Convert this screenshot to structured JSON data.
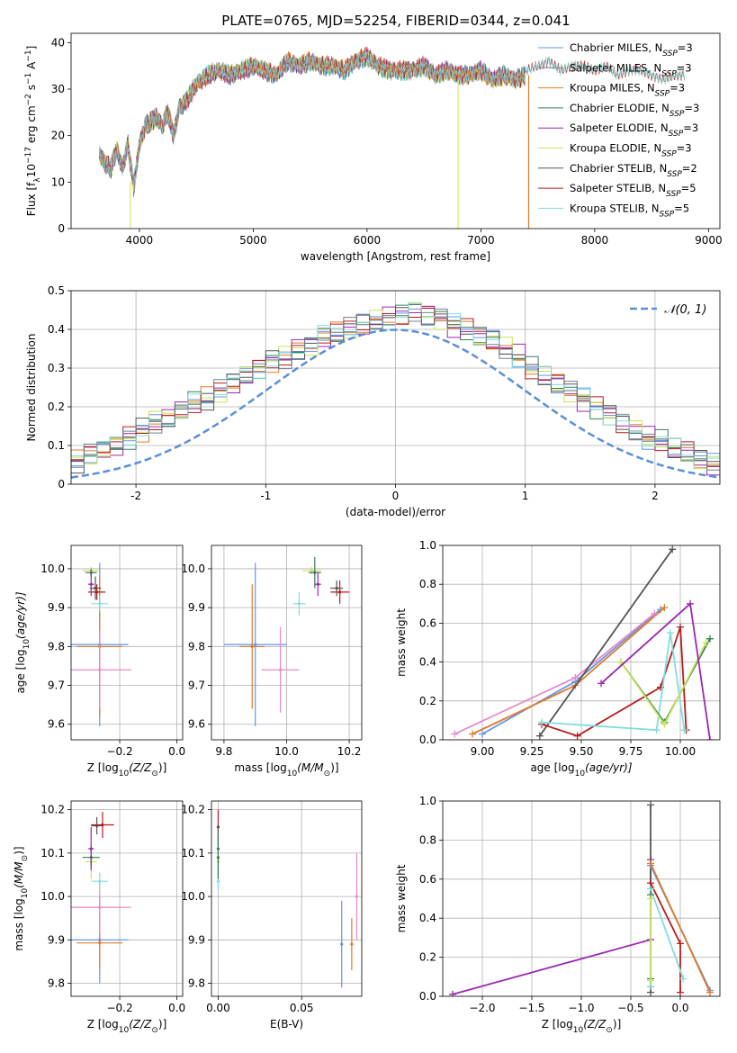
{
  "title": "PLATE=0765, MJD=52254, FIBERID=0344, z=0.041",
  "colors": [
    "#6495ed",
    "#708090",
    "#e07b27",
    "#3a7d5c",
    "#9c27b0",
    "#c8e55a",
    "#555555",
    "#b71c1c",
    "#80dede",
    "#e889c6"
  ],
  "legend_entries": [
    {
      "pre": "Chabrier MILES, N",
      "sub": "SSP",
      "post": "=3"
    },
    {
      "pre": "Salpeter MILES, N",
      "sub": "SSP",
      "post": "=3"
    },
    {
      "pre": "Kroupa MILES, N",
      "sub": "SSP",
      "post": "=3"
    },
    {
      "pre": "Chabrier ELODIE, N",
      "sub": "SSP",
      "post": "=3"
    },
    {
      "pre": "Salpeter ELODIE, N",
      "sub": "SSP",
      "post": "=3"
    },
    {
      "pre": "Kroupa ELODIE, N",
      "sub": "SSP",
      "post": "=3"
    },
    {
      "pre": "Chabrier STELIB, N",
      "sub": "SSP",
      "post": "=2"
    },
    {
      "pre": "Salpeter STELIB, N",
      "sub": "SSP",
      "post": "=5"
    },
    {
      "pre": "Kroupa STELIB, N",
      "sub": "SSP",
      "post": "=5"
    }
  ],
  "chart_data": [
    {
      "type": "line",
      "xlabel": "wavelength [Angstrom, rest frame]",
      "ylabel_parts": {
        "a": "Flux [f",
        "b": "λ",
        "c": "10",
        "d": "−17",
        "e": " erg cm",
        "f": "−2",
        "g": " s",
        "h": "−1",
        "i": " A",
        "j": "−1",
        "k": "]"
      },
      "xlim": [
        3400,
        9100
      ],
      "ylim": [
        0,
        42
      ],
      "xticks": [
        4000,
        5000,
        6000,
        7000,
        8000,
        9000
      ],
      "yticks": [
        0,
        10,
        20,
        30,
        40
      ],
      "spectrum": {
        "x": [
          3650,
          3700,
          3750,
          3800,
          3850,
          3900,
          3950,
          4000,
          4050,
          4100,
          4150,
          4200,
          4250,
          4300,
          4350,
          4400,
          4500,
          4600,
          4700,
          4800,
          4900,
          5000,
          5100,
          5200,
          5300,
          5400,
          5500,
          5600,
          5700,
          5800,
          5900,
          6000,
          6100,
          6200,
          6300,
          6400,
          6500,
          6600,
          6700,
          6800,
          6900,
          7000,
          7100,
          7200,
          7300,
          7400
        ],
        "y": [
          16,
          14,
          13,
          17,
          13,
          18,
          9,
          18,
          22,
          23,
          24,
          22,
          25,
          20,
          26,
          27,
          31,
          33,
          34,
          33,
          34,
          35,
          34,
          33,
          36,
          35,
          36,
          35,
          35,
          34,
          36,
          37,
          35,
          34,
          34,
          34,
          35,
          33,
          34,
          33,
          33,
          34,
          32,
          33,
          32,
          33
        ]
      },
      "red_tail": {
        "x": [
          7400,
          7500,
          7600,
          7700,
          7800,
          7900,
          8000,
          8100,
          8200,
          8300,
          8400,
          8500,
          8600,
          8700,
          8800
        ],
        "y": [
          34,
          35,
          36,
          34,
          35,
          35,
          34,
          35,
          33,
          34,
          34,
          33,
          32,
          33,
          33
        ]
      },
      "drops": [
        3920,
        6800,
        7420
      ],
      "legend_position": "top-right",
      "grid": false
    },
    {
      "type": "histogram",
      "xlabel": "(data-model)/error",
      "ylabel": "Normed distribution",
      "xlim": [
        -2.5,
        2.5
      ],
      "ylim": [
        0,
        0.5
      ],
      "xticks": [
        -2,
        -1,
        0,
        1,
        2
      ],
      "yticks": [
        0.0,
        0.1,
        0.2,
        0.3,
        0.4,
        0.5
      ],
      "bin_width": 0.1,
      "hist_base": [
        0.02,
        0.03,
        0.03,
        0.04,
        0.05,
        0.06,
        0.08,
        0.09,
        0.1,
        0.12,
        0.14,
        0.16,
        0.17,
        0.19,
        0.21,
        0.22,
        0.24,
        0.26,
        0.28,
        0.3,
        0.32,
        0.33,
        0.35,
        0.36,
        0.38,
        0.39,
        0.4,
        0.41,
        0.42,
        0.43,
        0.44,
        0.45,
        0.44,
        0.43,
        0.41,
        0.4,
        0.38,
        0.37,
        0.35,
        0.33,
        0.3,
        0.28,
        0.26,
        0.24,
        0.22,
        0.2,
        0.18,
        0.16,
        0.14,
        0.12,
        0.11,
        0.09,
        0.08,
        0.06,
        0.05,
        0.04,
        0.03,
        0.03,
        0.02,
        0.02
      ],
      "grid": true,
      "legend_label": "𝒩(0, 1)",
      "legend_position": "top-right"
    },
    {
      "type": "scatter",
      "xlabel_parts": {
        "a": "Z [log",
        "b": "10",
        "c": "(Z/Z",
        "d": "⊙",
        "e": ")]"
      },
      "ylabel_parts": {
        "a": "age  [log",
        "b": "10",
        "c": "(age/yr)]"
      },
      "xlim": [
        -0.37,
        0.02
      ],
      "ylim": [
        9.56,
        10.06
      ],
      "xticks": [
        -0.2,
        0.0
      ],
      "xticklabels": [
        "−0.2",
        "0.0"
      ],
      "yticks": [
        9.6,
        9.7,
        9.8,
        9.9,
        10.0
      ],
      "yticklabels": [
        "9.6",
        "9.7",
        "9.8",
        "9.9",
        "10.0"
      ],
      "points": [
        {
          "x": -0.27,
          "y": 9.805,
          "xe": 0.1,
          "ye": 0.21,
          "c": 0
        },
        {
          "x": -0.27,
          "y": 9.8,
          "xe": 0.08,
          "ye": 0.18,
          "c": 2
        },
        {
          "x": -0.27,
          "y": 9.74,
          "xe": 0.11,
          "ye": 0.1,
          "c": 9
        },
        {
          "x": -0.285,
          "y": 9.95,
          "xe": 0.02,
          "ye": 0.03,
          "c": 6
        },
        {
          "x": -0.28,
          "y": 9.94,
          "xe": 0.03,
          "ye": 0.02,
          "c": 7
        },
        {
          "x": -0.27,
          "y": 9.91,
          "xe": 0.03,
          "ye": 0.02,
          "c": 8
        },
        {
          "x": -0.3,
          "y": 9.995,
          "xe": 0.03,
          "ye": 0.01,
          "c": 5
        },
        {
          "x": -0.3,
          "y": 9.99,
          "xe": 0.02,
          "ye": 0.01,
          "c": 3
        },
        {
          "x": -0.3,
          "y": 9.96,
          "xe": 0.01,
          "ye": 0.03,
          "c": 4
        }
      ]
    },
    {
      "type": "scatter",
      "xlabel_parts": {
        "a": "mass [log",
        "b": "10",
        "c": "(M/M",
        "d": "⊙",
        "e": ")]"
      },
      "ylabel_parts": null,
      "xlim": [
        9.76,
        10.24
      ],
      "ylim": [
        9.56,
        10.06
      ],
      "xticks": [
        9.8,
        10.0,
        10.2
      ],
      "xticklabels": [
        "9.8",
        "10.0",
        "10.2"
      ],
      "yticks": [
        9.6,
        9.7,
        9.8,
        9.9,
        10.0
      ],
      "yticklabels": [
        "9.6",
        "9.7",
        "9.8",
        "9.9",
        "10.0"
      ],
      "points": [
        {
          "x": 9.9,
          "y": 9.805,
          "xe": 0.1,
          "ye": 0.21,
          "c": 0
        },
        {
          "x": 9.89,
          "y": 9.8,
          "xe": 0.04,
          "ye": 0.16,
          "c": 2
        },
        {
          "x": 9.98,
          "y": 9.74,
          "xe": 0.06,
          "ye": 0.11,
          "c": 9
        },
        {
          "x": 10.16,
          "y": 9.95,
          "xe": 0.02,
          "ye": 0.02,
          "c": 6
        },
        {
          "x": 10.17,
          "y": 9.94,
          "xe": 0.03,
          "ye": 0.03,
          "c": 7
        },
        {
          "x": 10.04,
          "y": 9.91,
          "xe": 0.02,
          "ye": 0.03,
          "c": 8
        },
        {
          "x": 10.08,
          "y": 9.995,
          "xe": 0.03,
          "ye": 0.01,
          "c": 5
        },
        {
          "x": 10.09,
          "y": 9.99,
          "xe": 0.02,
          "ye": 0.04,
          "c": 3
        },
        {
          "x": 10.1,
          "y": 9.96,
          "xe": 0.01,
          "ye": 0.03,
          "c": 4
        }
      ]
    },
    {
      "type": "line",
      "xlabel_parts": {
        "a": "age  [log",
        "b": "10",
        "c": "(age/yr)]"
      },
      "ylabel": "mass weight",
      "xlim": [
        8.8,
        10.2
      ],
      "ylim": [
        0,
        1
      ],
      "xticks": [
        9.0,
        9.25,
        9.5,
        9.75,
        10.0
      ],
      "xticklabels": [
        "9.00",
        "9.25",
        "9.50",
        "9.75",
        "10.00"
      ],
      "yticks": [
        0,
        0.2,
        0.4,
        0.6,
        0.8,
        1.0
      ],
      "yticklabels": [
        "0.0",
        "0.2",
        "0.4",
        "0.6",
        "0.8",
        "1.0"
      ],
      "series": [
        {
          "c": 0,
          "x": [
            9.0,
            9.47,
            9.9
          ],
          "y": [
            0.03,
            0.3,
            0.67
          ]
        },
        {
          "c": 2,
          "x": [
            8.95,
            9.47,
            9.92
          ],
          "y": [
            0.03,
            0.28,
            0.68
          ]
        },
        {
          "c": 9,
          "x": [
            8.86,
            9.47,
            9.87
          ],
          "y": [
            0.03,
            0.32,
            0.65
          ]
        },
        {
          "c": 6,
          "x": [
            9.29,
            9.96
          ],
          "y": [
            0.02,
            0.98
          ]
        },
        {
          "c": 7,
          "x": [
            9.3,
            9.48,
            9.9,
            10.0,
            10.03
          ],
          "y": [
            0.08,
            0.02,
            0.27,
            0.58,
            0.05
          ]
        },
        {
          "c": 8,
          "x": [
            9.3,
            9.88,
            9.95,
            10.02
          ],
          "y": [
            0.09,
            0.05,
            0.55,
            0.05
          ]
        },
        {
          "c": 3,
          "x": [
            9.7,
            9.92,
            10.15
          ],
          "y": [
            0.4,
            0.09,
            0.52
          ]
        },
        {
          "c": 5,
          "x": [
            9.7,
            9.92,
            10.13
          ],
          "y": [
            0.4,
            0.08,
            0.5
          ]
        },
        {
          "c": 4,
          "x": [
            9.6,
            10.05,
            10.15
          ],
          "y": [
            0.29,
            0.7,
            0.0
          ]
        }
      ]
    },
    {
      "type": "scatter",
      "xlabel_parts": {
        "a": "Z [log",
        "b": "10",
        "c": "(Z/Z",
        "d": "⊙",
        "e": ")]"
      },
      "ylabel_parts": {
        "a": "mass [log",
        "b": "10",
        "c": "(M/M",
        "d": "⊙",
        "e": ")]"
      },
      "xlim": [
        -0.37,
        0.02
      ],
      "ylim": [
        9.77,
        10.22
      ],
      "xticks": [
        -0.2,
        0.0
      ],
      "xticklabels": [
        "−0.2",
        "0.0"
      ],
      "yticks": [
        9.8,
        9.9,
        10.0,
        10.1,
        10.2
      ],
      "yticklabels": [
        "9.8",
        "9.9",
        "10.0",
        "10.1",
        "10.2"
      ],
      "points": [
        {
          "x": -0.27,
          "y": 9.9,
          "xe": 0.1,
          "ye": 0.1,
          "c": 0
        },
        {
          "x": -0.27,
          "y": 9.893,
          "xe": 0.08,
          "ye": 0.06,
          "c": 2
        },
        {
          "x": -0.27,
          "y": 9.975,
          "xe": 0.11,
          "ye": 0.06,
          "c": 9
        },
        {
          "x": -0.28,
          "y": 10.163,
          "xe": 0.02,
          "ye": 0.02,
          "c": 6
        },
        {
          "x": -0.26,
          "y": 10.165,
          "xe": 0.04,
          "ye": 0.03,
          "c": 7
        },
        {
          "x": -0.27,
          "y": 10.035,
          "xe": 0.03,
          "ye": 0.02,
          "c": 8
        },
        {
          "x": -0.3,
          "y": 10.08,
          "xe": 0.02,
          "ye": 0.04,
          "c": 5
        },
        {
          "x": -0.3,
          "y": 10.09,
          "xe": 0.03,
          "ye": 0.02,
          "c": 3
        },
        {
          "x": -0.3,
          "y": 10.11,
          "xe": 0.01,
          "ye": 0.05,
          "c": 4
        }
      ]
    },
    {
      "type": "scatter",
      "xlabel": "E(B-V)",
      "ylabel_parts": null,
      "xlim": [
        -0.004,
        0.086
      ],
      "ylim": [
        9.77,
        10.22
      ],
      "xticks": [
        0.0,
        0.05
      ],
      "xticklabels": [
        "0.00",
        "0.05"
      ],
      "yticks": [
        9.8,
        9.9,
        10.0,
        10.1,
        10.2
      ],
      "yticklabels": [
        "9.8",
        "9.9",
        "10.0",
        "10.1",
        "10.2"
      ],
      "points": [
        {
          "x": 0.074,
          "y": 9.89,
          "xe": 0,
          "ye": 0.1,
          "c": 0
        },
        {
          "x": 0.08,
          "y": 9.89,
          "xe": 0,
          "ye": 0.06,
          "c": 2
        },
        {
          "x": 0.083,
          "y": 10.0,
          "xe": 0,
          "ye": 0.1,
          "c": 9
        },
        {
          "x": 0.0,
          "y": 10.16,
          "xe": 0,
          "ye": 0.04,
          "c": 7
        },
        {
          "x": 0.0,
          "y": 10.11,
          "xe": 0,
          "ye": 0.06,
          "c": 6
        },
        {
          "x": 0.0,
          "y": 10.035,
          "xe": 0,
          "ye": 0.02,
          "c": 8
        },
        {
          "x": 0.0,
          "y": 10.08,
          "xe": 0,
          "ye": 0.04,
          "c": 5
        },
        {
          "x": 0.0,
          "y": 10.09,
          "xe": 0,
          "ye": 0.05,
          "c": 3
        }
      ]
    },
    {
      "type": "line",
      "xlabel_parts": {
        "a": "Z [log",
        "b": "10",
        "c": "(Z/Z",
        "d": "⊙",
        "e": ")]"
      },
      "ylabel": "mass weight",
      "xlim": [
        -2.4,
        0.4
      ],
      "ylim": [
        0,
        1
      ],
      "xticks": [
        -2.0,
        -1.5,
        -1.0,
        -0.5,
        0.0
      ],
      "xticklabels": [
        "−2.0",
        "−1.5",
        "−1.0",
        "−0.5",
        "0.0"
      ],
      "yticks": [
        0,
        0.2,
        0.4,
        0.6,
        0.8,
        1.0
      ],
      "yticklabels": [
        "0.0",
        "0.2",
        "0.4",
        "0.6",
        "0.8",
        "1.0"
      ],
      "series": [
        {
          "c": 4,
          "x": [
            -2.3,
            -0.3,
            -0.3
          ],
          "y": [
            0.01,
            0.29,
            0.7
          ]
        },
        {
          "c": 6,
          "x": [
            -0.3,
            -0.3
          ],
          "y": [
            0.02,
            0.98
          ]
        },
        {
          "c": 0,
          "x": [
            -0.3,
            0.3
          ],
          "y": [
            0.67,
            0.03
          ]
        },
        {
          "c": 2,
          "x": [
            -0.3,
            0.3
          ],
          "y": [
            0.68,
            0.02
          ]
        },
        {
          "c": 7,
          "x": [
            -0.3,
            -0.3,
            0.0,
            0.0
          ],
          "y": [
            0.05,
            0.58,
            0.27,
            0.02
          ]
        },
        {
          "c": 8,
          "x": [
            -0.3,
            -0.3,
            0.03
          ],
          "y": [
            0.05,
            0.55,
            0.09
          ]
        },
        {
          "c": 3,
          "x": [
            -0.3,
            -0.3
          ],
          "y": [
            0.09,
            0.52
          ]
        },
        {
          "c": 5,
          "x": [
            -0.3,
            -0.3
          ],
          "y": [
            0.08,
            0.5
          ]
        }
      ]
    }
  ]
}
